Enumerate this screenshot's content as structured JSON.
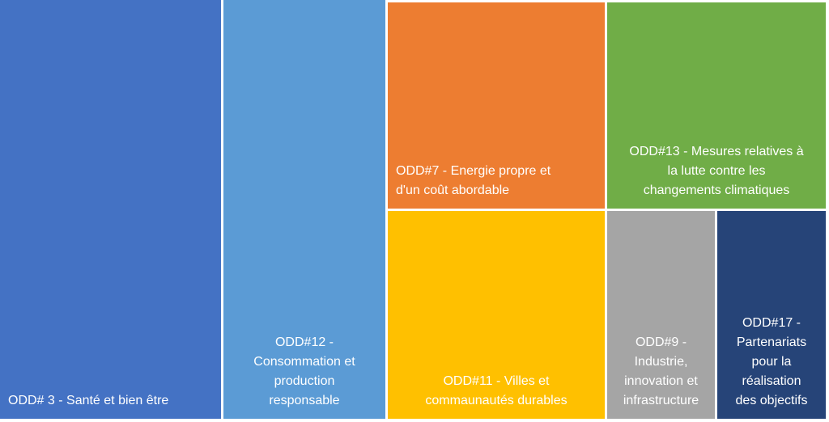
{
  "chart_data": {
    "type": "treemap",
    "items": [
      {
        "label": "ODD# 3 - Santé et bien être",
        "color": "#4472C4"
      },
      {
        "label": "ODD#12 -\nConsommation et\nproduction\nresponsable",
        "color": "#5B9BD5"
      },
      {
        "label": "ODD#7 - Energie propre et\nd'un coût abordable",
        "color": "#ED7D31"
      },
      {
        "label": "ODD#13 - Mesures relatives à\nla lutte contre les\nchangements climatiques",
        "color": "#70AD47"
      },
      {
        "label": "ODD#11 - Villes et\ncommaunautés durables",
        "color": "#FFC000"
      },
      {
        "label": "ODD#9 -\nIndustrie,\ninnovation et\ninfrastructure",
        "color": "#A5A5A5"
      },
      {
        "label": "ODD#17 -\nPartenariats\npour la\nréalisation\ndes objectifs",
        "color": "#264478"
      }
    ]
  }
}
